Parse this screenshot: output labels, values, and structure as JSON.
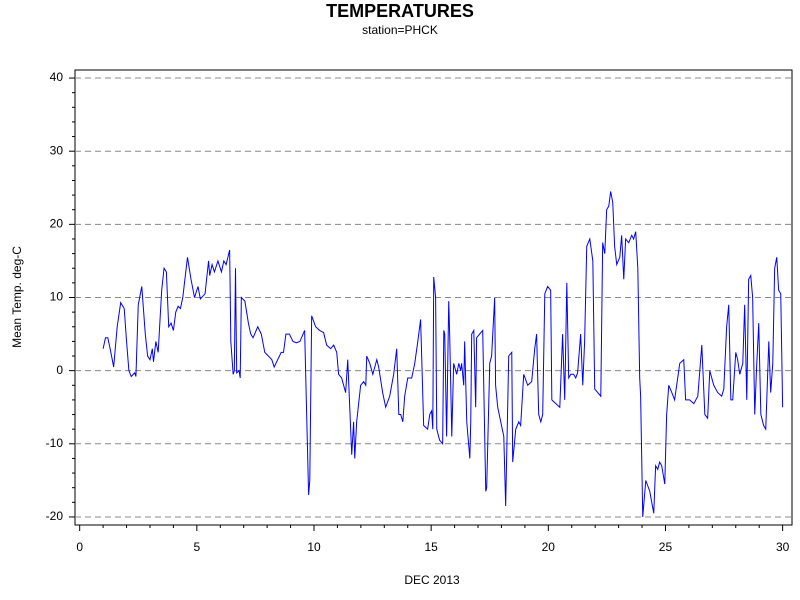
{
  "chart_data": {
    "type": "line",
    "title": "TEMPERATURES",
    "subtitle": "station=PHCK",
    "xlabel": "DEC 2013",
    "ylabel": "Mean Temp. deg-C",
    "color": "#0000ff",
    "xlim": [
      -0.2,
      30.4
    ],
    "ylim": [
      -21.1,
      41.1
    ],
    "xticks": [
      0,
      5,
      10,
      15,
      20,
      25,
      30
    ],
    "xminorticks": [
      1,
      2,
      3,
      4,
      6,
      7,
      8,
      9,
      11,
      12,
      13,
      14,
      16,
      17,
      18,
      19,
      21,
      22,
      23,
      24,
      26,
      27,
      28,
      29
    ],
    "yticks": [
      -20,
      -10,
      0,
      10,
      20,
      30,
      40
    ],
    "yminorticks": [
      -18,
      -16,
      -14,
      -12,
      -8,
      -6,
      -4,
      -2,
      2,
      4,
      6,
      8,
      12,
      14,
      16,
      18,
      22,
      24,
      26,
      28,
      32,
      34,
      36,
      38
    ],
    "grid": true,
    "x": [
      1.0,
      1.1,
      1.2,
      1.3,
      1.45,
      1.6,
      1.75,
      1.9,
      2.0,
      2.1,
      2.2,
      2.35,
      2.4,
      2.5,
      2.65,
      2.8,
      2.9,
      3.0,
      3.1,
      3.15,
      3.25,
      3.35,
      3.5,
      3.6,
      3.7,
      3.8,
      3.9,
      4.0,
      4.1,
      4.2,
      4.3,
      4.4,
      4.6,
      4.75,
      4.9,
      5.05,
      5.15,
      5.35,
      5.5,
      5.55,
      5.65,
      5.75,
      5.9,
      6.05,
      6.15,
      6.25,
      6.4,
      6.45,
      6.55,
      6.6,
      6.65,
      6.7,
      6.8,
      6.85,
      6.9,
      7.05,
      7.2,
      7.3,
      7.4,
      7.6,
      7.75,
      7.9,
      8.05,
      8.2,
      8.3,
      8.45,
      8.6,
      8.7,
      8.8,
      8.95,
      9.1,
      9.25,
      9.4,
      9.6,
      9.77,
      9.82,
      9.9,
      10.07,
      10.24,
      10.41,
      10.54,
      10.71,
      10.84,
      10.97,
      11.05,
      11.18,
      11.35,
      11.44,
      11.61,
      11.69,
      11.74,
      11.82,
      11.99,
      12.12,
      12.21,
      12.25,
      12.38,
      12.51,
      12.68,
      12.76,
      12.93,
      13.06,
      13.23,
      13.4,
      13.53,
      13.62,
      13.7,
      13.79,
      13.87,
      14.0,
      14.17,
      14.3,
      14.43,
      14.55,
      14.68,
      14.85,
      14.94,
      15.02,
      15.07,
      15.11,
      15.19,
      15.24,
      15.36,
      15.49,
      15.54,
      15.58,
      15.66,
      15.75,
      15.79,
      15.88,
      15.96,
      16.09,
      16.18,
      16.26,
      16.3,
      16.39,
      16.43,
      16.52,
      16.65,
      16.69,
      16.73,
      16.82,
      16.9,
      16.94,
      17.07,
      17.2,
      17.33,
      17.37,
      17.5,
      17.58,
      17.71,
      17.75,
      17.84,
      17.97,
      18.1,
      18.18,
      18.31,
      18.44,
      18.48,
      18.61,
      18.74,
      18.82,
      18.95,
      19.12,
      19.29,
      19.42,
      19.5,
      19.59,
      19.68,
      19.76,
      19.85,
      19.97,
      20.1,
      20.15,
      20.32,
      20.49,
      20.61,
      20.7,
      20.79,
      20.87,
      20.96,
      21.08,
      21.17,
      21.25,
      21.38,
      21.47,
      21.55,
      21.64,
      21.77,
      21.9,
      21.98,
      22.11,
      22.24,
      22.32,
      22.41,
      22.49,
      22.58,
      22.66,
      22.75,
      22.83,
      22.92,
      23.05,
      23.13,
      23.22,
      23.3,
      23.43,
      23.56,
      23.64,
      23.73,
      23.82,
      23.9,
      23.94,
      24.03,
      24.16,
      24.33,
      24.5,
      24.58,
      24.67,
      24.75,
      24.84,
      24.97,
      25.05,
      25.14,
      25.27,
      25.39,
      25.61,
      25.78,
      25.86,
      26.03,
      26.21,
      26.38,
      26.55,
      26.68,
      26.8,
      26.89,
      27.06,
      27.23,
      27.4,
      27.49,
      27.61,
      27.7,
      27.79,
      27.87,
      28.0,
      28.08,
      28.17,
      28.3,
      28.38,
      28.47,
      28.55,
      28.64,
      28.72,
      28.81,
      28.89,
      28.98,
      29.07,
      29.19,
      29.28,
      29.41,
      29.49,
      29.58,
      29.66,
      29.75,
      29.83,
      29.92,
      30.0
    ],
    "values": [
      3,
      4.5,
      4.5,
      3,
      0.5,
      6,
      9.3,
      8.5,
      4,
      0,
      -0.8,
      -0.3,
      -0.8,
      9,
      11.5,
      5,
      2,
      1.5,
      3,
      1.2,
      4,
      2.5,
      11,
      14,
      13.5,
      6,
      6.5,
      5.5,
      8,
      8.8,
      8.5,
      10,
      15.5,
      12.5,
      10,
      11.5,
      9.8,
      10.5,
      15,
      13,
      14.5,
      13.5,
      15,
      13.5,
      15,
      14.5,
      16.5,
      4,
      -0.5,
      0,
      14,
      -0.3,
      0,
      -1,
      10,
      9.5,
      6.5,
      5,
      4.5,
      6,
      5,
      2.5,
      2,
      1.5,
      0.5,
      1.5,
      2.5,
      2.5,
      5,
      5,
      4,
      3.8,
      4,
      5.5,
      -17,
      -15,
      7.5,
      6,
      5.5,
      5.2,
      3.5,
      3,
      3.5,
      2.5,
      -0.5,
      -1,
      -3,
      1.5,
      -11.5,
      -7,
      -12,
      -7,
      -2,
      -1.5,
      -2,
      2,
      1,
      -0.5,
      1.5,
      0.5,
      -3,
      -5,
      -3.5,
      -0.5,
      3,
      -6,
      -6,
      -7,
      -3.5,
      -1,
      -1,
      1,
      4,
      7,
      -7.5,
      -8,
      -6,
      -5.5,
      -8,
      12.8,
      10,
      -8,
      -9.5,
      -10,
      5.5,
      5,
      -9,
      9.5,
      5,
      -9,
      1,
      -0.5,
      1,
      0,
      1,
      -2,
      4,
      -7,
      -12,
      -7,
      5,
      5.5,
      -5,
      4.5,
      5,
      5.5,
      -16.5,
      -16,
      1,
      2,
      10,
      -2,
      -5,
      -7,
      -9,
      -18.5,
      2,
      2.5,
      -12.5,
      -8,
      -7,
      -7.5,
      -0.5,
      -2,
      -1.5,
      3,
      5,
      -6,
      -7,
      -6,
      10.5,
      11.5,
      11,
      -4,
      -4.5,
      -5,
      5,
      -4,
      12,
      -1,
      -0.5,
      -0.5,
      -1,
      -0.3,
      5,
      -2,
      4,
      17,
      18,
      15,
      -2.5,
      -3,
      -3.5,
      17.5,
      16,
      22,
      22.5,
      24.5,
      23,
      17,
      14.5,
      15.5,
      18.5,
      12.5,
      18,
      17.5,
      18.5,
      18,
      19,
      14,
      -1,
      -3.5,
      -20,
      -15,
      -16.5,
      -19.5,
      -13,
      -13.5,
      -12.5,
      -13,
      -15.5,
      -6,
      -2,
      -3,
      -4,
      1,
      1.5,
      -4,
      -4,
      -4.5,
      -3.5,
      3.5,
      -6,
      -6.5,
      0,
      -2,
      -3,
      -3.5,
      -2.5,
      6,
      9,
      -4,
      -4,
      2.5,
      1.5,
      -0.5,
      1,
      9,
      -4,
      12.5,
      13,
      10,
      -6,
      0.5,
      6.5,
      -6,
      -7.5,
      -8,
      4,
      -3,
      1,
      14,
      15.5,
      11,
      10.5,
      -5
    ]
  }
}
